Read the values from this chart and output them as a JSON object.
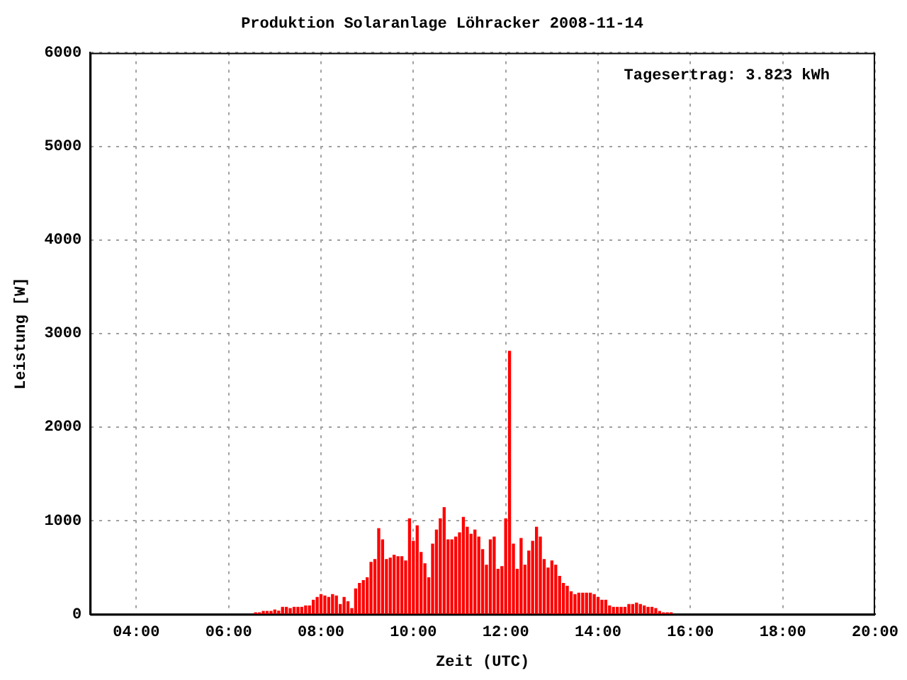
{
  "chart_data": {
    "type": "bar",
    "title": "Produktion Solaranlage Löhracker 2008-11-14",
    "xlabel": "Zeit (UTC)",
    "ylabel": "Leistung [W]",
    "annotations": [
      "Tagesertrag: 3.823 kWh"
    ],
    "x": [
      6.583,
      6.667,
      6.75,
      6.833,
      6.917,
      7,
      7.083,
      7.167,
      7.25,
      7.333,
      7.417,
      7.5,
      7.583,
      7.667,
      7.75,
      7.833,
      7.917,
      8,
      8.083,
      8.167,
      8.25,
      8.333,
      8.417,
      8.5,
      8.583,
      8.667,
      8.75,
      8.833,
      8.917,
      9,
      9.083,
      9.167,
      9.25,
      9.333,
      9.417,
      9.5,
      9.583,
      9.667,
      9.75,
      9.833,
      9.917,
      10,
      10.083,
      10.167,
      10.25,
      10.333,
      10.417,
      10.5,
      10.583,
      10.667,
      10.75,
      10.833,
      10.917,
      11,
      11.083,
      11.167,
      11.25,
      11.333,
      11.417,
      11.5,
      11.583,
      11.667,
      11.75,
      11.833,
      11.917,
      12,
      12.083,
      12.167,
      12.25,
      12.333,
      12.417,
      12.5,
      12.583,
      12.667,
      12.75,
      12.833,
      12.917,
      13,
      13.083,
      13.167,
      13.25,
      13.333,
      13.417,
      13.5,
      13.583,
      13.667,
      13.75,
      13.833,
      13.917,
      14,
      14.083,
      14.167,
      14.25,
      14.333,
      14.417,
      14.5,
      14.583,
      14.667,
      14.75,
      14.833,
      14.917,
      15,
      15.083,
      15.167,
      15.25,
      15.333,
      15.417,
      15.5,
      15.583
    ],
    "series": [
      {
        "color": "#ff0000",
        "values": [
          15,
          15,
          30,
          30,
          30,
          45,
          35,
          75,
          75,
          60,
          75,
          75,
          75,
          90,
          90,
          150,
          180,
          210,
          195,
          180,
          210,
          195,
          105,
          180,
          135,
          60,
          270,
          330,
          360,
          390,
          555,
          585,
          915,
          795,
          585,
          600,
          630,
          615,
          615,
          570,
          1020,
          780,
          945,
          660,
          540,
          390,
          750,
          900,
          1020,
          1140,
          795,
          795,
          825,
          870,
          1035,
          930,
          855,
          900,
          825,
          690,
          525,
          795,
          825,
          480,
          510,
          1020,
          2810,
          750,
          480,
          810,
          525,
          675,
          780,
          930,
          825,
          585,
          495,
          570,
          525,
          405,
          330,
          300,
          240,
          210,
          225,
          225,
          225,
          225,
          210,
          180,
          150,
          150,
          90,
          75,
          75,
          75,
          75,
          105,
          105,
          120,
          105,
          90,
          75,
          75,
          60,
          30,
          15,
          15,
          15
        ]
      }
    ],
    "xlim": [
      3,
      20
    ],
    "xticks": [
      {
        "value": 4,
        "label": "04:00"
      },
      {
        "value": 6,
        "label": "06:00"
      },
      {
        "value": 8,
        "label": "08:00"
      },
      {
        "value": 10,
        "label": "10:00"
      },
      {
        "value": 12,
        "label": "12:00"
      },
      {
        "value": 14,
        "label": "14:00"
      },
      {
        "value": 16,
        "label": "16:00"
      },
      {
        "value": 18,
        "label": "18:00"
      },
      {
        "value": 20,
        "label": "20:00"
      }
    ],
    "ylim": [
      0,
      6000
    ],
    "yticks": [
      0,
      1000,
      2000,
      3000,
      4000,
      5000,
      6000
    ],
    "grid": true,
    "legend": false
  }
}
